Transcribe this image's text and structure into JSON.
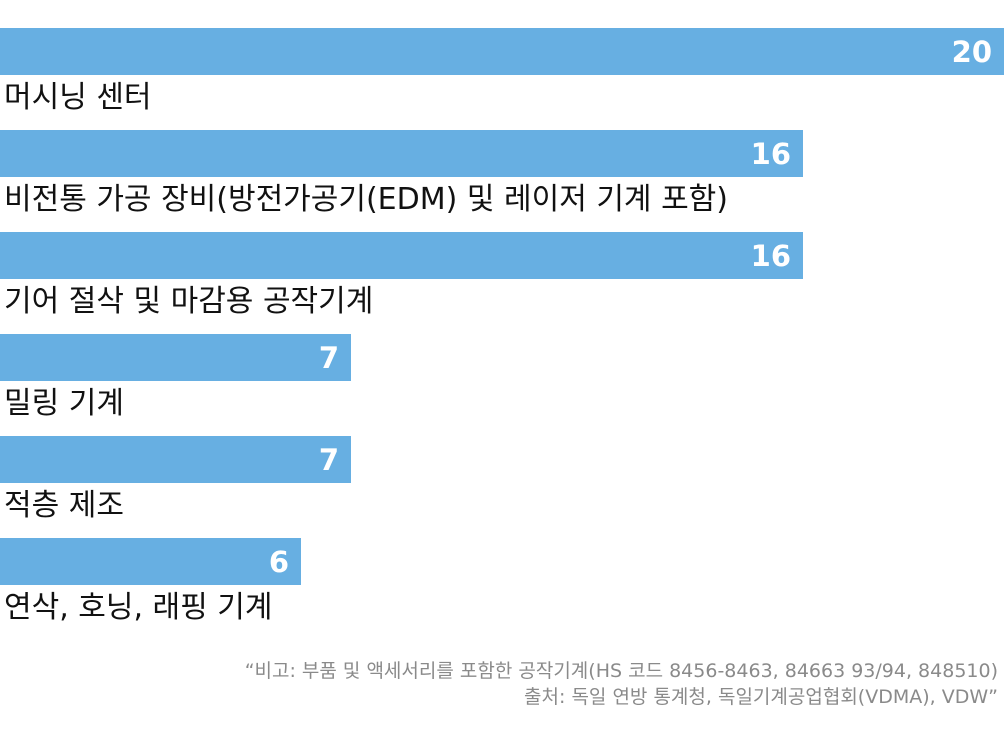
{
  "chart_data": {
    "type": "bar",
    "orientation": "horizontal",
    "categories": [
      "머시닝 센터",
      "비전통 가공 장비(방전가공기(EDM) 및 레이저 기계 포함)",
      "기어 절삭 및 마감용 공작기계",
      "밀링 기계",
      "적층 제조",
      "연삭, 호닝, 래핑 기계"
    ],
    "values": [
      20,
      16,
      16,
      7,
      7,
      6
    ],
    "data_labels": [
      "20",
      "16",
      "16",
      "7",
      "7",
      "6"
    ],
    "xlim": [
      0,
      20
    ],
    "grid": false,
    "legend": "none",
    "bar_color": "#67afe2",
    "label_color": "#111111"
  },
  "notes": {
    "line1": "“비고: 부품 및 액세서리를 포함한 공작기계(HS 코드 8456-8463, 84663 93/94, 848510)",
    "line2": "출처: 독일 연방 통계청, 독일기계공업협회(VDMA), VDW”"
  },
  "colors": {
    "note_text": "#8a8a8a",
    "background": "#ffffff"
  }
}
